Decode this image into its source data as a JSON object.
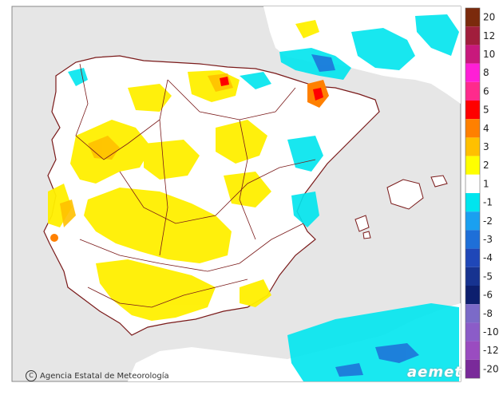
{
  "map": {
    "sea_color": "#e6e6e6",
    "land_color": "#ffffff",
    "border_color": "#7a1a1a",
    "credit": "Agencia Estatal de Meteorología",
    "credit_icon": "copyright-icon",
    "brand": "aemet"
  },
  "legend": {
    "items": [
      {
        "label": "20",
        "color": "#7b2a0c"
      },
      {
        "label": "12",
        "color": "#a11e3c"
      },
      {
        "label": "10",
        "color": "#c8197c"
      },
      {
        "label": "8",
        "color": "#ff1fd6"
      },
      {
        "label": "6",
        "color": "#ff2a8c"
      },
      {
        "label": "5",
        "color": "#ff0000"
      },
      {
        "label": "4",
        "color": "#ff8000"
      },
      {
        "label": "3",
        "color": "#ffc000"
      },
      {
        "label": "2",
        "color": "#ffff00"
      },
      {
        "label": "1",
        "color": "#ffffff"
      },
      {
        "label": "-1",
        "color": "#00e5ee"
      },
      {
        "label": "-2",
        "color": "#1aa0f0"
      },
      {
        "label": "-3",
        "color": "#1e6fd8"
      },
      {
        "label": "-4",
        "color": "#1f47b8"
      },
      {
        "label": "-5",
        "color": "#173390"
      },
      {
        "label": "-6",
        "color": "#0d1f6e"
      },
      {
        "label": "-8",
        "color": "#7b6ac8"
      },
      {
        "label": "-10",
        "color": "#8b5cc8"
      },
      {
        "label": "-12",
        "color": "#9a4cc0"
      },
      {
        "label": "-20",
        "color": "#7a2a9a"
      }
    ]
  }
}
